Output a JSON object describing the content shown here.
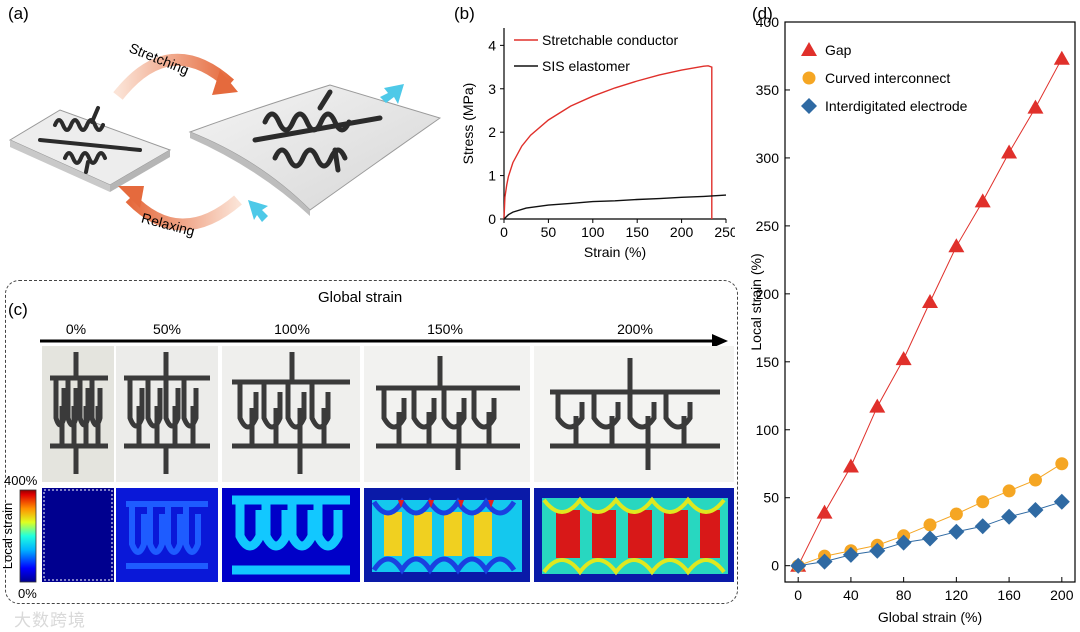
{
  "panels": {
    "a": {
      "label": "(a)",
      "stretch_label": "Stretching",
      "relax_label": "Relaxing"
    },
    "b": {
      "label": "(b)",
      "chart_data": {
        "type": "line",
        "title": "",
        "xlabel": "Strain (%)",
        "ylabel": "Stress (MPa)",
        "xlim": [
          0,
          250
        ],
        "ylim": [
          0,
          4.4
        ],
        "xticks": [
          0,
          50,
          100,
          150,
          200,
          250
        ],
        "yticks": [
          0,
          1,
          2,
          3,
          4
        ],
        "legend_position": "top-left",
        "series": [
          {
            "name": "Stretchable conductor",
            "color": "#e0302b",
            "x": [
              0,
              1,
              3,
              5,
              10,
              20,
              30,
              50,
              75,
              100,
              125,
              150,
              175,
              200,
              225,
              230,
              234,
              234
            ],
            "y": [
              0,
              0.5,
              0.78,
              0.98,
              1.3,
              1.68,
              1.93,
              2.28,
              2.6,
              2.83,
              3.02,
              3.18,
              3.32,
              3.43,
              3.52,
              3.53,
              3.5,
              0
            ]
          },
          {
            "name": "SIS elastomer",
            "color": "#111111",
            "x": [
              0,
              5,
              10,
              25,
              50,
              75,
              100,
              125,
              150,
              175,
              200,
              225,
              250
            ],
            "y": [
              0,
              0.1,
              0.16,
              0.25,
              0.32,
              0.36,
              0.4,
              0.42,
              0.45,
              0.47,
              0.5,
              0.52,
              0.55
            ]
          }
        ]
      }
    },
    "c": {
      "label": "(c)",
      "global_strain_title": "Global strain",
      "strain_levels": [
        "0%",
        "50%",
        "100%",
        "150%",
        "200%"
      ],
      "colorbar": {
        "title": "Local strain",
        "max_label": "400%",
        "min_label": "0%"
      }
    },
    "d": {
      "label": "(d)",
      "chart_data": {
        "type": "scatter",
        "title": "",
        "xlabel": "Global strain (%)",
        "ylabel": "Local strain (%)",
        "xlim": [
          -10,
          210
        ],
        "ylim": [
          -12,
          400
        ],
        "xticks": [
          0,
          40,
          80,
          120,
          160,
          200
        ],
        "yticks": [
          0,
          50,
          100,
          150,
          200,
          250,
          300,
          350,
          400
        ],
        "legend_position": "top-left",
        "x": [
          0,
          20,
          40,
          60,
          80,
          100,
          120,
          140,
          160,
          180,
          200
        ],
        "series": [
          {
            "name": "Gap",
            "marker": "triangle",
            "color": "#e0302b",
            "values": [
              0,
              39,
              73,
              117,
              152,
              194,
              235,
              268,
              304,
              337,
              373
            ]
          },
          {
            "name": "Curved interconnect",
            "marker": "circle",
            "color": "#f5a623",
            "values": [
              0,
              7,
              11,
              15,
              22,
              30,
              38,
              47,
              55,
              63,
              75
            ]
          },
          {
            "name": "Interdigitated electrode",
            "marker": "diamond",
            "color": "#2f6aa3",
            "values": [
              0,
              3,
              8,
              11,
              17,
              20,
              25,
              29,
              36,
              41,
              47
            ]
          }
        ]
      }
    }
  },
  "watermark": "大数跨境"
}
